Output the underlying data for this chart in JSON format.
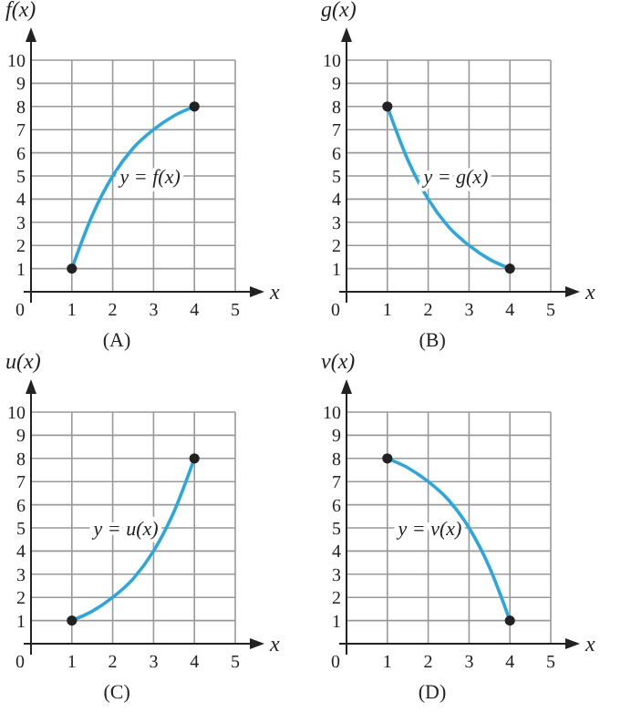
{
  "chart_data": [
    {
      "type": "line",
      "title": "(A)",
      "xlabel": "x",
      "ylabel": "f(x)",
      "xlim": [
        0,
        5
      ],
      "ylim": [
        0,
        10
      ],
      "xticks": [
        0,
        1,
        2,
        3,
        4,
        5
      ],
      "yticks": [
        1,
        2,
        3,
        4,
        5,
        6,
        7,
        8,
        9,
        10
      ],
      "grid": true,
      "series": [
        {
          "name": "y = f(x)",
          "color": "#29a8e0",
          "x": [
            1,
            1.5,
            2,
            2.5,
            3,
            3.5,
            4
          ],
          "values": [
            1,
            3.3,
            5,
            6.2,
            7,
            7.6,
            8
          ]
        },
        {
          "type": "scatter",
          "color": "#222222",
          "x": [
            1,
            4
          ],
          "values": [
            1,
            8
          ],
          "marker": "circle"
        }
      ]
    },
    {
      "type": "line",
      "title": "(B)",
      "xlabel": "x",
      "ylabel": "g(x)",
      "xlim": [
        0,
        5
      ],
      "ylim": [
        0,
        10
      ],
      "xticks": [
        0,
        1,
        2,
        3,
        4,
        5
      ],
      "yticks": [
        1,
        2,
        3,
        4,
        5,
        6,
        7,
        8,
        9,
        10
      ],
      "grid": true,
      "series": [
        {
          "name": "y = g(x)",
          "color": "#29a8e0",
          "x": [
            1,
            1.5,
            2,
            2.5,
            3,
            3.5,
            4
          ],
          "values": [
            8,
            5.7,
            4,
            2.8,
            2,
            1.4,
            1
          ]
        },
        {
          "type": "scatter",
          "color": "#222222",
          "x": [
            1,
            4
          ],
          "values": [
            8,
            1
          ],
          "marker": "circle"
        }
      ]
    },
    {
      "type": "line",
      "title": "(C)",
      "xlabel": "x",
      "ylabel": "u(x)",
      "xlim": [
        0,
        5
      ],
      "ylim": [
        0,
        10
      ],
      "xticks": [
        0,
        1,
        2,
        3,
        4,
        5
      ],
      "yticks": [
        1,
        2,
        3,
        4,
        5,
        6,
        7,
        8,
        9,
        10
      ],
      "grid": true,
      "series": [
        {
          "name": "y = u(x)",
          "color": "#29a8e0",
          "x": [
            1,
            1.5,
            2,
            2.5,
            3,
            3.5,
            4
          ],
          "values": [
            1,
            1.4,
            2,
            2.8,
            4,
            5.7,
            8
          ]
        },
        {
          "type": "scatter",
          "color": "#222222",
          "x": [
            1,
            4
          ],
          "values": [
            1,
            8
          ],
          "marker": "circle"
        }
      ]
    },
    {
      "type": "line",
      "title": "(D)",
      "xlabel": "x",
      "ylabel": "v(x)",
      "xlim": [
        0,
        5
      ],
      "ylim": [
        0,
        10
      ],
      "xticks": [
        0,
        1,
        2,
        3,
        4,
        5
      ],
      "yticks": [
        1,
        2,
        3,
        4,
        5,
        6,
        7,
        8,
        9,
        10
      ],
      "grid": true,
      "series": [
        {
          "name": "y = v(x)",
          "color": "#29a8e0",
          "x": [
            1,
            1.5,
            2,
            2.5,
            3,
            3.5,
            4
          ],
          "values": [
            8,
            7.6,
            7,
            6.2,
            5,
            3.3,
            1
          ]
        },
        {
          "type": "scatter",
          "color": "#222222",
          "x": [
            1,
            4
          ],
          "values": [
            8,
            1
          ],
          "marker": "circle"
        }
      ]
    }
  ]
}
